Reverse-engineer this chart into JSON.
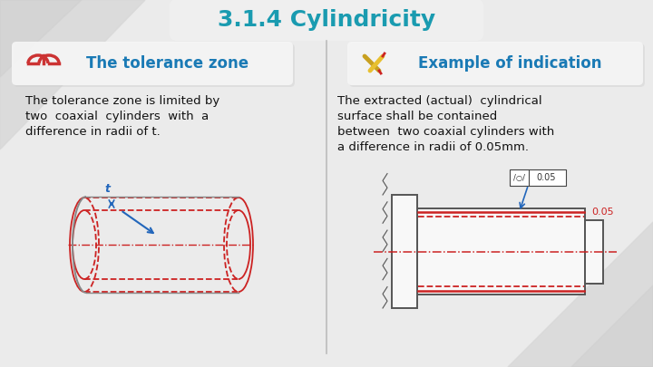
{
  "title": "3.1.4 Cylindricity",
  "title_color": "#1a9bb0",
  "title_fontsize": 18,
  "bg_color": "#ebebeb",
  "left_header": "The tolerance zone",
  "right_header": "Example of indication",
  "header_color": "#1a7ab5",
  "header_bg": "#f5f5f5",
  "left_text_line1": "The tolerance zone is limited by",
  "left_text_line2": "two  coaxial  cylinders  with  a",
  "left_text_line3": "difference in radii of t.",
  "right_text_line1": "The extracted (actual)  cylindrical",
  "right_text_line2": "surface shall be contained",
  "right_text_line3": "between  two coaxial cylinders with",
  "right_text_line4": "a difference in radii of 0.05mm.",
  "divider_color": "#bbbbbb",
  "text_color": "#111111",
  "red_color": "#cc2222",
  "blue_color": "#2266bb",
  "annotation_text": "0.05",
  "shadow_color": "#cccccc"
}
